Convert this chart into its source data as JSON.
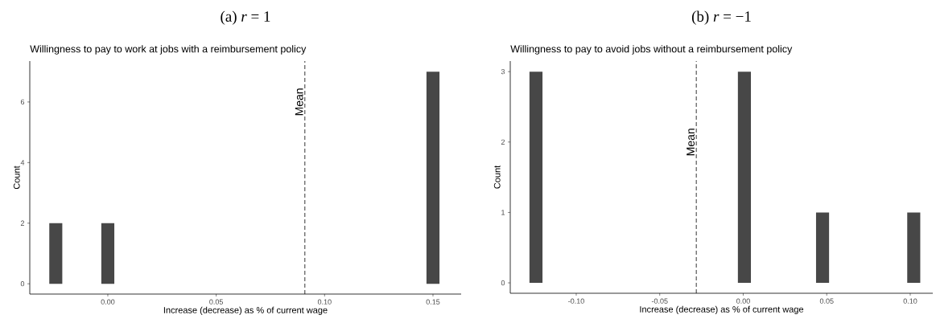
{
  "chart_data": [
    {
      "type": "histogram",
      "title": "(a) *r* = 1",
      "subtitle": "Willingness to pay to work at jobs with a reimbursement policy",
      "xlabel": "Increase (decrease) as % of current wage",
      "ylabel": "Count",
      "bins": [
        -0.027,
        -0.021,
        -0.015,
        -0.009,
        -0.003,
        0.003,
        0.009,
        0.015,
        0.021,
        0.027,
        0.033,
        0.039,
        0.045,
        0.051,
        0.057,
        0.063,
        0.069,
        0.075,
        0.081,
        0.087,
        0.093,
        0.099,
        0.105,
        0.111,
        0.117,
        0.123,
        0.129,
        0.135,
        0.141,
        0.147,
        0.153
      ],
      "values": [
        2,
        0,
        0,
        0,
        2,
        0,
        0,
        0,
        0,
        0,
        0,
        0,
        0,
        0,
        0,
        0,
        0,
        0,
        0,
        0,
        0,
        0,
        0,
        0,
        0,
        0,
        0,
        0,
        0,
        7
      ],
      "color": "#474747",
      "xlim": [
        -0.036,
        0.163
      ],
      "ylim": [
        -0.34,
        7.35
      ],
      "xticks": [
        {
          "value": 0,
          "label": "0.00"
        },
        {
          "value": 0.05,
          "label": "0.05"
        },
        {
          "value": 0.1,
          "label": "0.10"
        },
        {
          "value": 0.15,
          "label": "0.15"
        }
      ],
      "yticks": [
        0,
        2,
        4,
        6
      ],
      "ref_lines": [
        {
          "axis": "x",
          "value": 0.0909,
          "color": "#000000",
          "line_style": "dashed"
        }
      ],
      "annotations": [
        {
          "text": "Mean",
          "x": 0.0909,
          "y": 6
        }
      ]
    },
    {
      "type": "histogram",
      "title": "(b) *r* = −1",
      "subtitle": "Willingness to pay to avoid jobs without a reimbursement policy",
      "xlabel": "Increase (decrease) as % of current wage",
      "ylabel": "Count",
      "bins": [
        -0.128,
        -0.1202,
        -0.1124,
        -0.1046,
        -0.0968,
        -0.089,
        -0.0812,
        -0.0734,
        -0.0656,
        -0.0578,
        -0.05,
        -0.0422,
        -0.0344,
        -0.0266,
        -0.0188,
        -0.011,
        -0.0032,
        0.0046,
        0.0124,
        0.0202,
        0.028,
        0.0358,
        0.0436,
        0.0514,
        0.0592,
        0.067,
        0.0748,
        0.0826,
        0.0904,
        0.0982,
        0.106
      ],
      "values": [
        3,
        0,
        0,
        0,
        0,
        0,
        0,
        0,
        0,
        0,
        0,
        0,
        0,
        0,
        0,
        0,
        3,
        0,
        0,
        0,
        0,
        0,
        1,
        0,
        0,
        0,
        0,
        0,
        0,
        1
      ],
      "color": "#474747",
      "xlim": [
        -0.1395,
        0.1135
      ],
      "ylim": [
        -0.148,
        3.15
      ],
      "xticks": [
        {
          "value": -0.1,
          "label": "-0.10"
        },
        {
          "value": -0.05,
          "label": "-0.05"
        },
        {
          "value": 0,
          "label": "0.00"
        },
        {
          "value": 0.05,
          "label": "0.05"
        },
        {
          "value": 0.1,
          "label": "0.10"
        }
      ],
      "yticks": [
        0,
        1,
        2,
        3
      ],
      "ref_lines": [
        {
          "axis": "x",
          "value": -0.0281,
          "color": "#000000",
          "line_style": "dashed"
        }
      ],
      "annotations": [
        {
          "text": "Mean",
          "x": -0.0281,
          "y": 2
        }
      ]
    }
  ]
}
